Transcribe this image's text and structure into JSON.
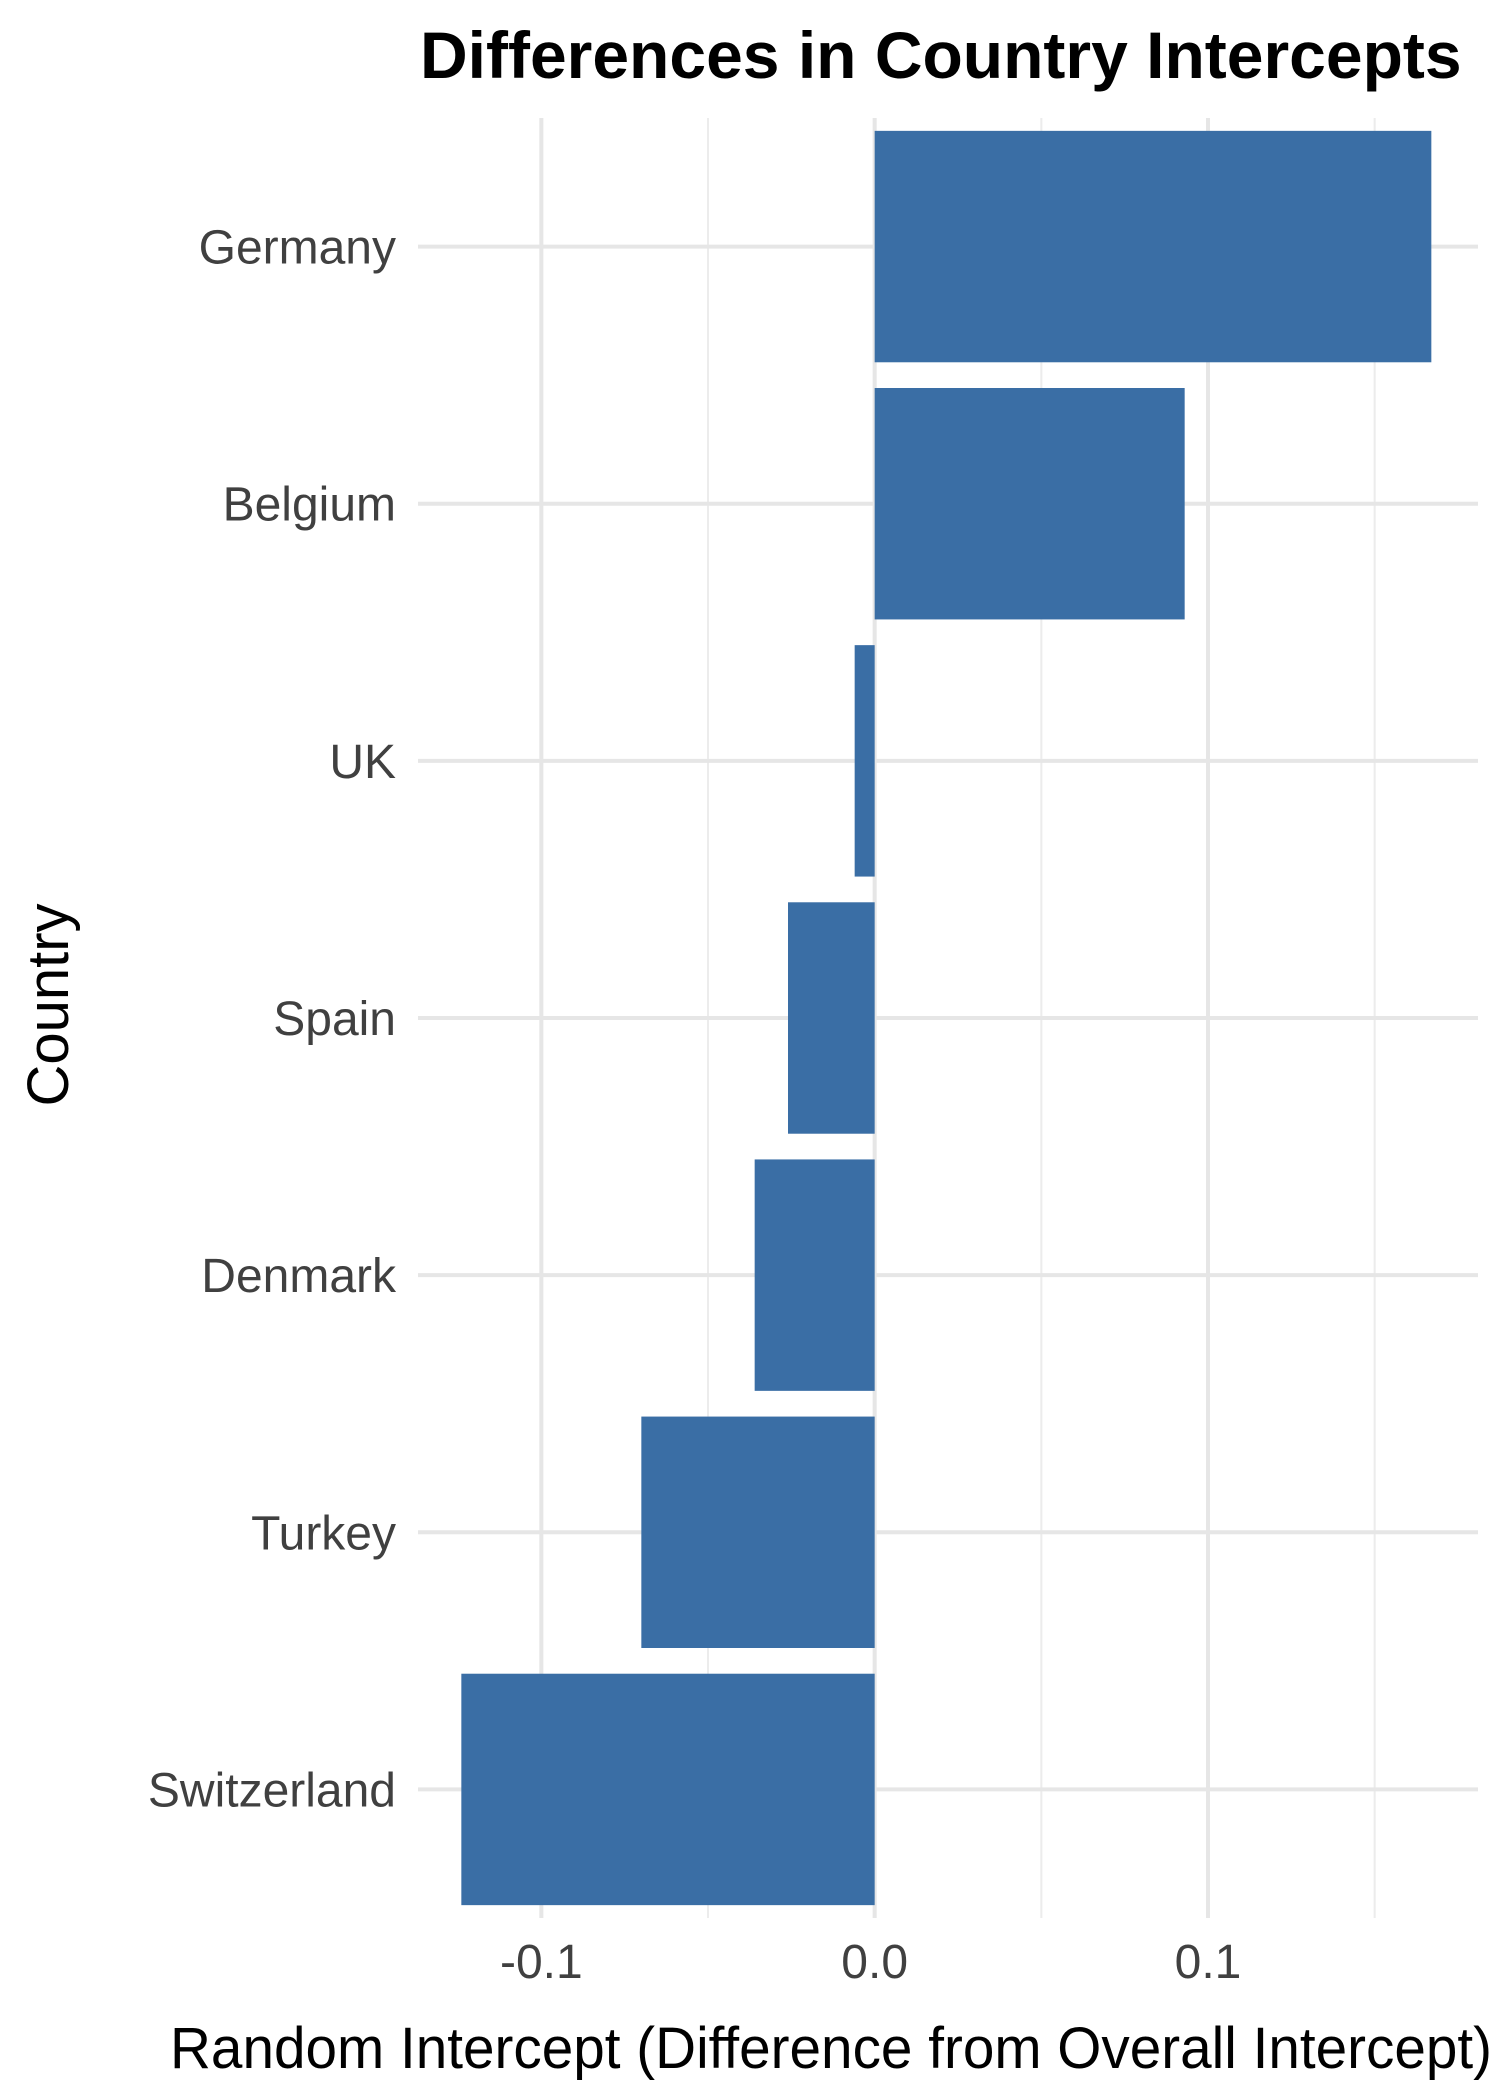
{
  "chart_data": {
    "type": "bar",
    "orientation": "horizontal",
    "title": "Differences in Country Intercepts",
    "xlabel": "Random Intercept (Difference from Overall Intercept)",
    "ylabel": "Country",
    "categories": [
      "Germany",
      "Belgium",
      "UK",
      "Spain",
      "Denmark",
      "Turkey",
      "Switzerland"
    ],
    "values": [
      0.167,
      0.093,
      -0.006,
      -0.026,
      -0.036,
      -0.07,
      -0.124
    ],
    "xlim": [
      -0.137,
      0.181
    ],
    "x_ticks": [
      -0.1,
      0.0,
      0.1
    ],
    "x_tick_labels": [
      "-0.1",
      "0.0",
      "0.1"
    ],
    "grid": true,
    "legend": "none",
    "colors": {
      "bar": "#3a6ea5"
    }
  }
}
